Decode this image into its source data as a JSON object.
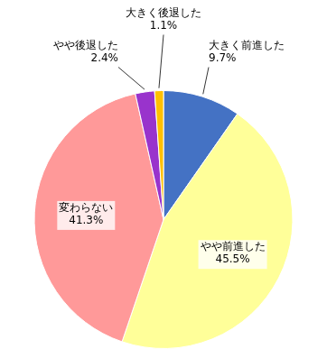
{
  "chart_data": {
    "type": "pie",
    "categories": [
      "大きく前進した",
      "やや前進した",
      "変わらない",
      "やや後退した",
      "大きく後退した"
    ],
    "values": [
      9.7,
      45.5,
      41.3,
      2.4,
      1.1
    ],
    "value_labels": [
      "9.7%",
      "45.5%",
      "41.3%",
      "2.4%",
      "1.1%"
    ],
    "colors": [
      "#4472C4",
      "#FFFF99",
      "#FF9999",
      "#9933CC",
      "#FFC000"
    ],
    "data_labels": true
  }
}
